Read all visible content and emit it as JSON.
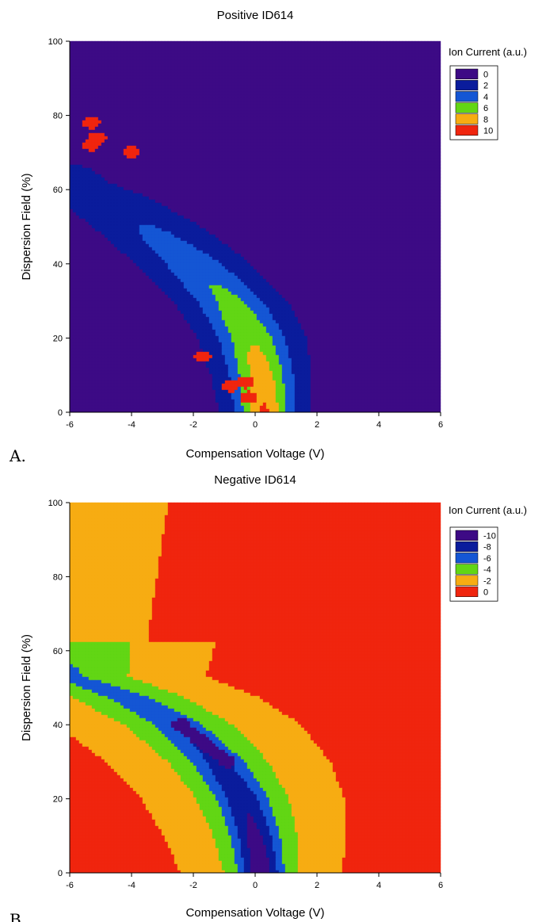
{
  "chart_data": [
    {
      "type": "heatmap",
      "panel_label": "A.",
      "title": "Positive ID614",
      "xlabel": "Compensation Voltage (V)",
      "ylabel": "Dispersion Field (%)",
      "xlim": [
        -6,
        6
      ],
      "ylim": [
        0,
        100
      ],
      "x_ticks": [
        "-6",
        "-4",
        "-2",
        "0",
        "2",
        "4",
        "6"
      ],
      "y_ticks": [
        "0",
        "20",
        "40",
        "60",
        "80",
        "100"
      ],
      "background_value": 0.6,
      "legend": {
        "title": "Ion Current (a.u.)",
        "entries": [
          {
            "label": "0",
            "color": "#3d0a85"
          },
          {
            "label": "2",
            "color": "#0a1c9c"
          },
          {
            "label": "4",
            "color": "#1456d4"
          },
          {
            "label": "6",
            "color": "#62d614"
          },
          {
            "label": "8",
            "color": "#f7ac12"
          },
          {
            "label": "10",
            "color": "#f0250e"
          }
        ]
      },
      "ridge": [
        {
          "x": 0.3,
          "y": 0
        },
        {
          "x": 0.2,
          "y": 10
        },
        {
          "x": -0.1,
          "y": 20
        },
        {
          "x": -0.8,
          "y": 30
        },
        {
          "x": -2.0,
          "y": 40
        },
        {
          "x": -3.5,
          "y": 50
        },
        {
          "x": -5.0,
          "y": 58
        },
        {
          "x": -6.0,
          "y": 62
        }
      ],
      "hotspots": [
        {
          "x": -5.3,
          "y": 78,
          "value": 10
        },
        {
          "x": -5.3,
          "y": 72,
          "value": 10
        },
        {
          "x": -5.1,
          "y": 74,
          "value": 10
        },
        {
          "x": -4.0,
          "y": 70,
          "value": 10
        },
        {
          "x": -1.7,
          "y": 15,
          "value": 11
        },
        {
          "x": -0.8,
          "y": 7,
          "value": 10
        },
        {
          "x": -0.3,
          "y": 8,
          "value": 10
        },
        {
          "x": -0.2,
          "y": 4,
          "value": 10
        }
      ]
    },
    {
      "type": "heatmap",
      "panel_label": "B.",
      "title": "Negative ID614",
      "xlabel": "Compensation Voltage (V)",
      "ylabel": "Dispersion Field (%)",
      "xlim": [
        -6,
        6
      ],
      "ylim": [
        0,
        100
      ],
      "x_ticks": [
        "-6",
        "-4",
        "-2",
        "0",
        "2",
        "4",
        "6"
      ],
      "y_ticks": [
        "0",
        "20",
        "40",
        "60",
        "80",
        "100"
      ],
      "background_value": 0,
      "legend": {
        "title": "Ion Current (a.u.)",
        "entries": [
          {
            "label": "-10",
            "color": "#3d0a85"
          },
          {
            "label": "-8",
            "color": "#0a1c9c"
          },
          {
            "label": "-6",
            "color": "#1456d4"
          },
          {
            "label": "-4",
            "color": "#62d614"
          },
          {
            "label": "-2",
            "color": "#f7ac12"
          },
          {
            "label": "0",
            "color": "#f0250e"
          }
        ]
      },
      "ridge": [
        {
          "x": 0.2,
          "y": 0
        },
        {
          "x": 0.0,
          "y": 10
        },
        {
          "x": -0.4,
          "y": 20
        },
        {
          "x": -1.2,
          "y": 30
        },
        {
          "x": -2.5,
          "y": 40
        },
        {
          "x": -4.0,
          "y": 47
        },
        {
          "x": -6.0,
          "y": 53
        }
      ],
      "hotspots": [
        {
          "x": -2.4,
          "y": 40,
          "value": -10
        },
        {
          "x": -2.1,
          "y": 38,
          "value": -10
        },
        {
          "x": -1.8,
          "y": 36,
          "value": -10
        },
        {
          "x": -1.5,
          "y": 34,
          "value": -10
        },
        {
          "x": -1.2,
          "y": 32,
          "value": -10
        },
        {
          "x": -0.9,
          "y": 30,
          "value": -10
        }
      ]
    }
  ]
}
